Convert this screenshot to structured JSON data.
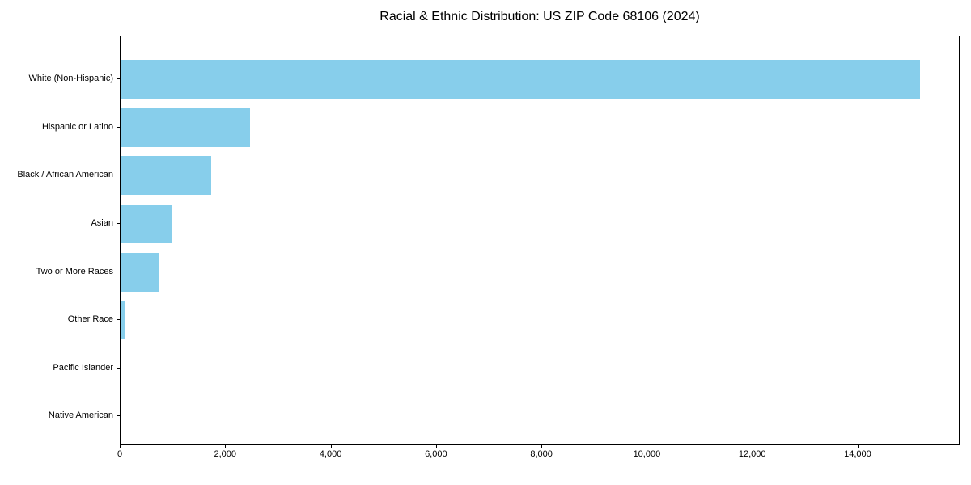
{
  "chart_data": {
    "type": "bar",
    "orientation": "horizontal",
    "title": "Racial & Ethnic Distribution: US ZIP Code 68106 (2024)",
    "categories": [
      "White (Non-Hispanic)",
      "Hispanic or Latino",
      "Black / African American",
      "Asian",
      "Two or More Races",
      "Other Race",
      "Pacific Islander",
      "Native American"
    ],
    "values": [
      15170,
      2460,
      1720,
      970,
      740,
      95,
      15,
      10
    ],
    "bar_color": "#87CEEB",
    "xlabel": "",
    "ylabel": "",
    "xlim": [
      0,
      15935
    ],
    "x_tick_values": [
      0,
      2000,
      4000,
      6000,
      8000,
      10000,
      12000,
      14000
    ],
    "x_tick_labels": [
      "0",
      "2,000",
      "4,000",
      "6,000",
      "8,000",
      "10,000",
      "12,000",
      "14,000"
    ],
    "grid": false,
    "legend": "none",
    "category_order": "largest at top"
  }
}
